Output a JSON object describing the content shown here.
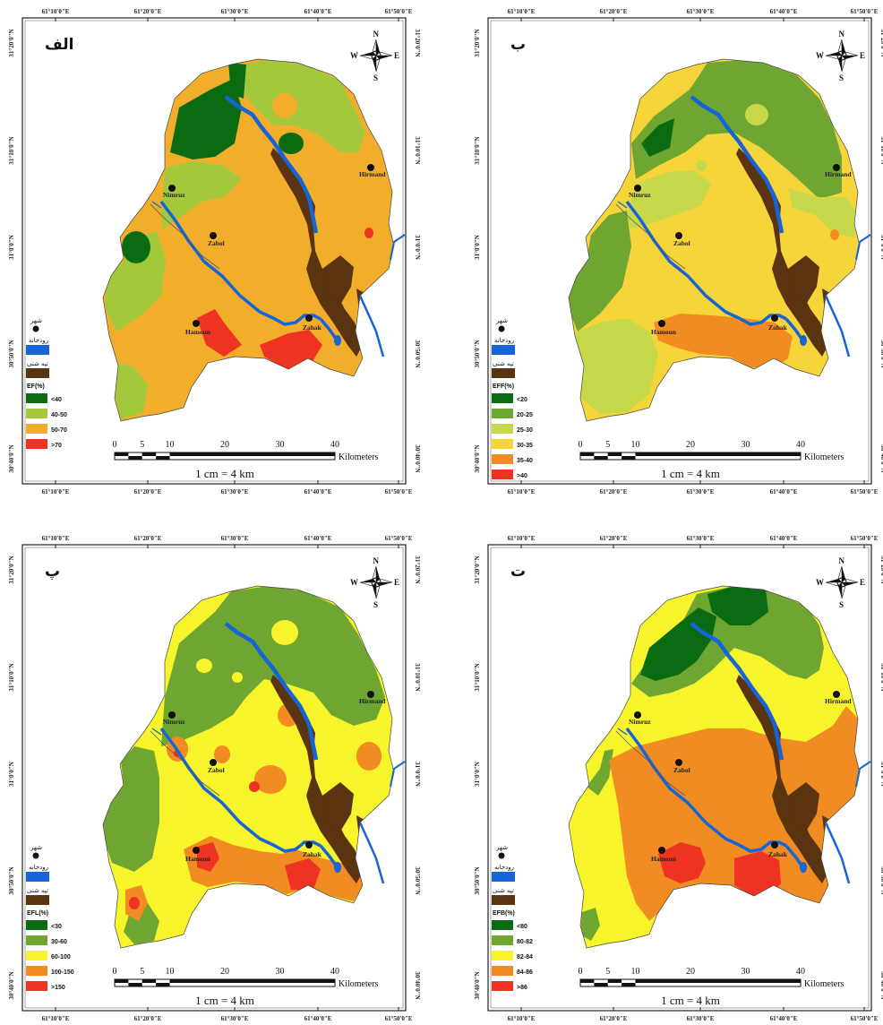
{
  "panels": [
    {
      "letter": "الف",
      "legend_title": "EF(%)",
      "classes": [
        {
          "label": "<40",
          "color": "#0b6b12"
        },
        {
          "label": "40-50",
          "color": "#a4c83c"
        },
        {
          "label": "50-70",
          "color": "#f2ae2a"
        },
        {
          "label": ">70",
          "color": "#ee3322"
        }
      ],
      "top_lon": [
        "61°10'0\"E",
        "61°20'0\"E",
        "61°30'0\"E",
        "61°40'0\"E",
        "61°50'0\"E"
      ],
      "bottom_lon": [
        "61°10'0\"E",
        "61°20'0\"E",
        "61°30'0\"E",
        "61°40'0\"E",
        "61°50'0\"E"
      ],
      "left_lat": [
        "31°20'0\"N",
        "31°10'0\"N",
        "31°0'0\"N",
        "30°50'0\"N",
        "30°40'0\"N"
      ],
      "right_lat": [
        "31°20'0\"N",
        "31°10'0\"N",
        "31°0'0\"N",
        "30°50'0\"N",
        "30°40'0\"N"
      ]
    },
    {
      "letter": "ب",
      "legend_title": "EFF(%)",
      "classes": [
        {
          "label": "<20",
          "color": "#0b6b12"
        },
        {
          "label": "20-25",
          "color": "#6fa531"
        },
        {
          "label": "25-30",
          "color": "#c7d94a"
        },
        {
          "label": "30-35",
          "color": "#f6d53a"
        },
        {
          "label": "35-40",
          "color": "#f08c22"
        },
        {
          "label": ">40",
          "color": "#ee3322"
        }
      ],
      "top_lon": [
        "61°10'0\"E",
        "61°20'0\"E",
        "61°30'0\"E",
        "61°40'0\"E",
        "61°50'0\"E"
      ],
      "bottom_lon": [
        "61°10'0\"E",
        "61°20'0\"E",
        "61°30'0\"E",
        "61°40'0\"E",
        "61°50'0\"E"
      ],
      "left_lat": [
        "31°20'0\"N",
        "31°10'0\"N",
        "31°0'0\"N",
        "30°50'0\"N",
        "30°40'0\"N"
      ],
      "right_lat": [
        "31°20'0\"N",
        "31°10'0\"N",
        "31°0'0\"N",
        "30°50'0\"N",
        "30°40'0\"N"
      ]
    },
    {
      "letter": "پ",
      "legend_title": "EFL(%)",
      "classes": [
        {
          "label": "<30",
          "color": "#0b6b12"
        },
        {
          "label": "30-60",
          "color": "#6fa531"
        },
        {
          "label": "60-100",
          "color": "#f7f42c"
        },
        {
          "label": "100-150",
          "color": "#f08c22"
        },
        {
          "label": ">150",
          "color": "#ee3322"
        }
      ],
      "top_lon": [
        "61°10'0\"E",
        "61°20'0\"E",
        "61°30'0\"E",
        "61°40'0\"E",
        "61°50'0\"E"
      ],
      "bottom_lon": [
        "61°10'0\"E",
        "61°20'0\"E",
        "61°30'0\"E",
        "61°40'0\"E",
        "61°50'0\"E"
      ],
      "left_lat": [
        "31°20'0\"N",
        "31°10'0\"N",
        "31°0'0\"N",
        "30°50'0\"N",
        "30°40'0\"N"
      ],
      "right_lat": [
        "31°20'0\"N",
        "31°10'0\"N",
        "31°0'0\"N",
        "30°50'0\"N",
        "30°40'0\"N"
      ]
    },
    {
      "letter": "ت",
      "legend_title": "EFB(%)",
      "classes": [
        {
          "label": "<80",
          "color": "#0b6b12"
        },
        {
          "label": "80-82",
          "color": "#6fa531"
        },
        {
          "label": "82-84",
          "color": "#f7f42c"
        },
        {
          "label": "84-86",
          "color": "#f08c22"
        },
        {
          "label": ">86",
          "color": "#ee3322"
        }
      ],
      "top_lon": [
        "61°10'0\"E",
        "61°20'0\"E",
        "61°30'0\"E",
        "61°40'0\"E",
        "61°50'0\"E"
      ],
      "bottom_lon": [
        "61°10'0\"E",
        "61°20'0\"E",
        "61°30'0\"E",
        "61°40'0\"E",
        "61°50'0\"E"
      ],
      "left_lat": [
        "31°20'0\"N",
        "31°10'0\"N",
        "31°0'0\"N",
        "30°50'0\"N",
        "30°40'0\"N"
      ],
      "right_lat": [
        "31°20'0\"N",
        "31°10'0\"N",
        "31°0'0\"N",
        "30°50'0\"N",
        "30°40'0\"N"
      ]
    }
  ],
  "cities": [
    "Nimruz",
    "Zabol",
    "Hamoun",
    "Zahak",
    "Hirmand"
  ],
  "legend_common": {
    "city": "شهر",
    "river": "رودخانه",
    "dune": "تپه شنی",
    "river_color": "#1565d8",
    "dune_color": "#5a3311"
  },
  "compass": {
    "n": "N",
    "s": "S",
    "e": "E",
    "w": "W"
  },
  "scalebar": {
    "ticks": [
      "0",
      "5",
      "10",
      "20",
      "30",
      "40"
    ],
    "unit": "Kilometers",
    "ratio": "1 cm = 4 km"
  }
}
